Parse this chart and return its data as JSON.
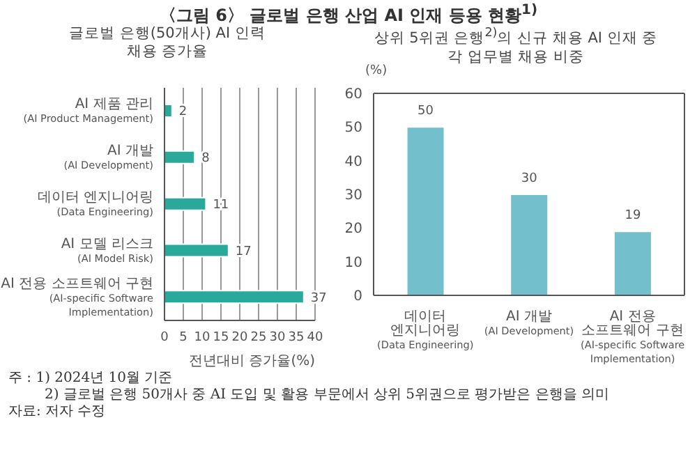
{
  "chart_data": [
    {
      "type": "bar",
      "title": "〈그림 6〉 글로벌 은행 산업 AI 인재 등용 현황$^{1)}$",
      "subtitle": "글로벌 은행(50개사) AI 인력\n채용 증가율",
      "orientation": "horizontal",
      "categories": [
        "AI 제품 관리\n(AI Product Management)",
        "AI 개발\n(AI Development)",
        "데이터 엔지니어링\n(Data Engineering)",
        "AI 모델 리스크\n(AI Model Risk)",
        "AI 전용 소프트웨어 구현\n(AI-specific Software\nImplementation)"
      ],
      "values": [
        2,
        8,
        11,
        17,
        37
      ],
      "color": "#2aa99a",
      "data_labels": true,
      "xlim": [
        0,
        40
      ],
      "xticks": [
        0,
        5,
        10,
        15,
        20,
        25,
        30,
        35,
        40
      ],
      "xlabel": "전년대비 증가율(%)",
      "grid": "x"
    },
    {
      "type": "bar",
      "title": "상위 5위권 은행$^{2)}$의 신규 채용 AI 인재 중\n각 업무별 채용 비중",
      "categories": [
        "데이터\n엔지니어링\n(Data Engineering)",
        "AI 개발\n(AI Development)",
        "AI 전용\n소프트웨어 구현\n(AI-specific Software\nImplementation)"
      ],
      "values": [
        50,
        30,
        19
      ],
      "color": "#74bfcc",
      "data_labels": true,
      "ylim": [
        0,
        60
      ],
      "yticks": [
        0,
        10,
        20,
        30,
        40,
        50,
        60
      ],
      "ylabel": "(%)",
      "annotations": [
        "주 : 1) 2024년 10월 기준",
        "2) 글로벌 은행 50개사 중 AI 도입 및 활용 부문에서 상위 5위권으로 평가받은 은행을 의미",
        "자료: 저자 수정"
      ]
    }
  ]
}
